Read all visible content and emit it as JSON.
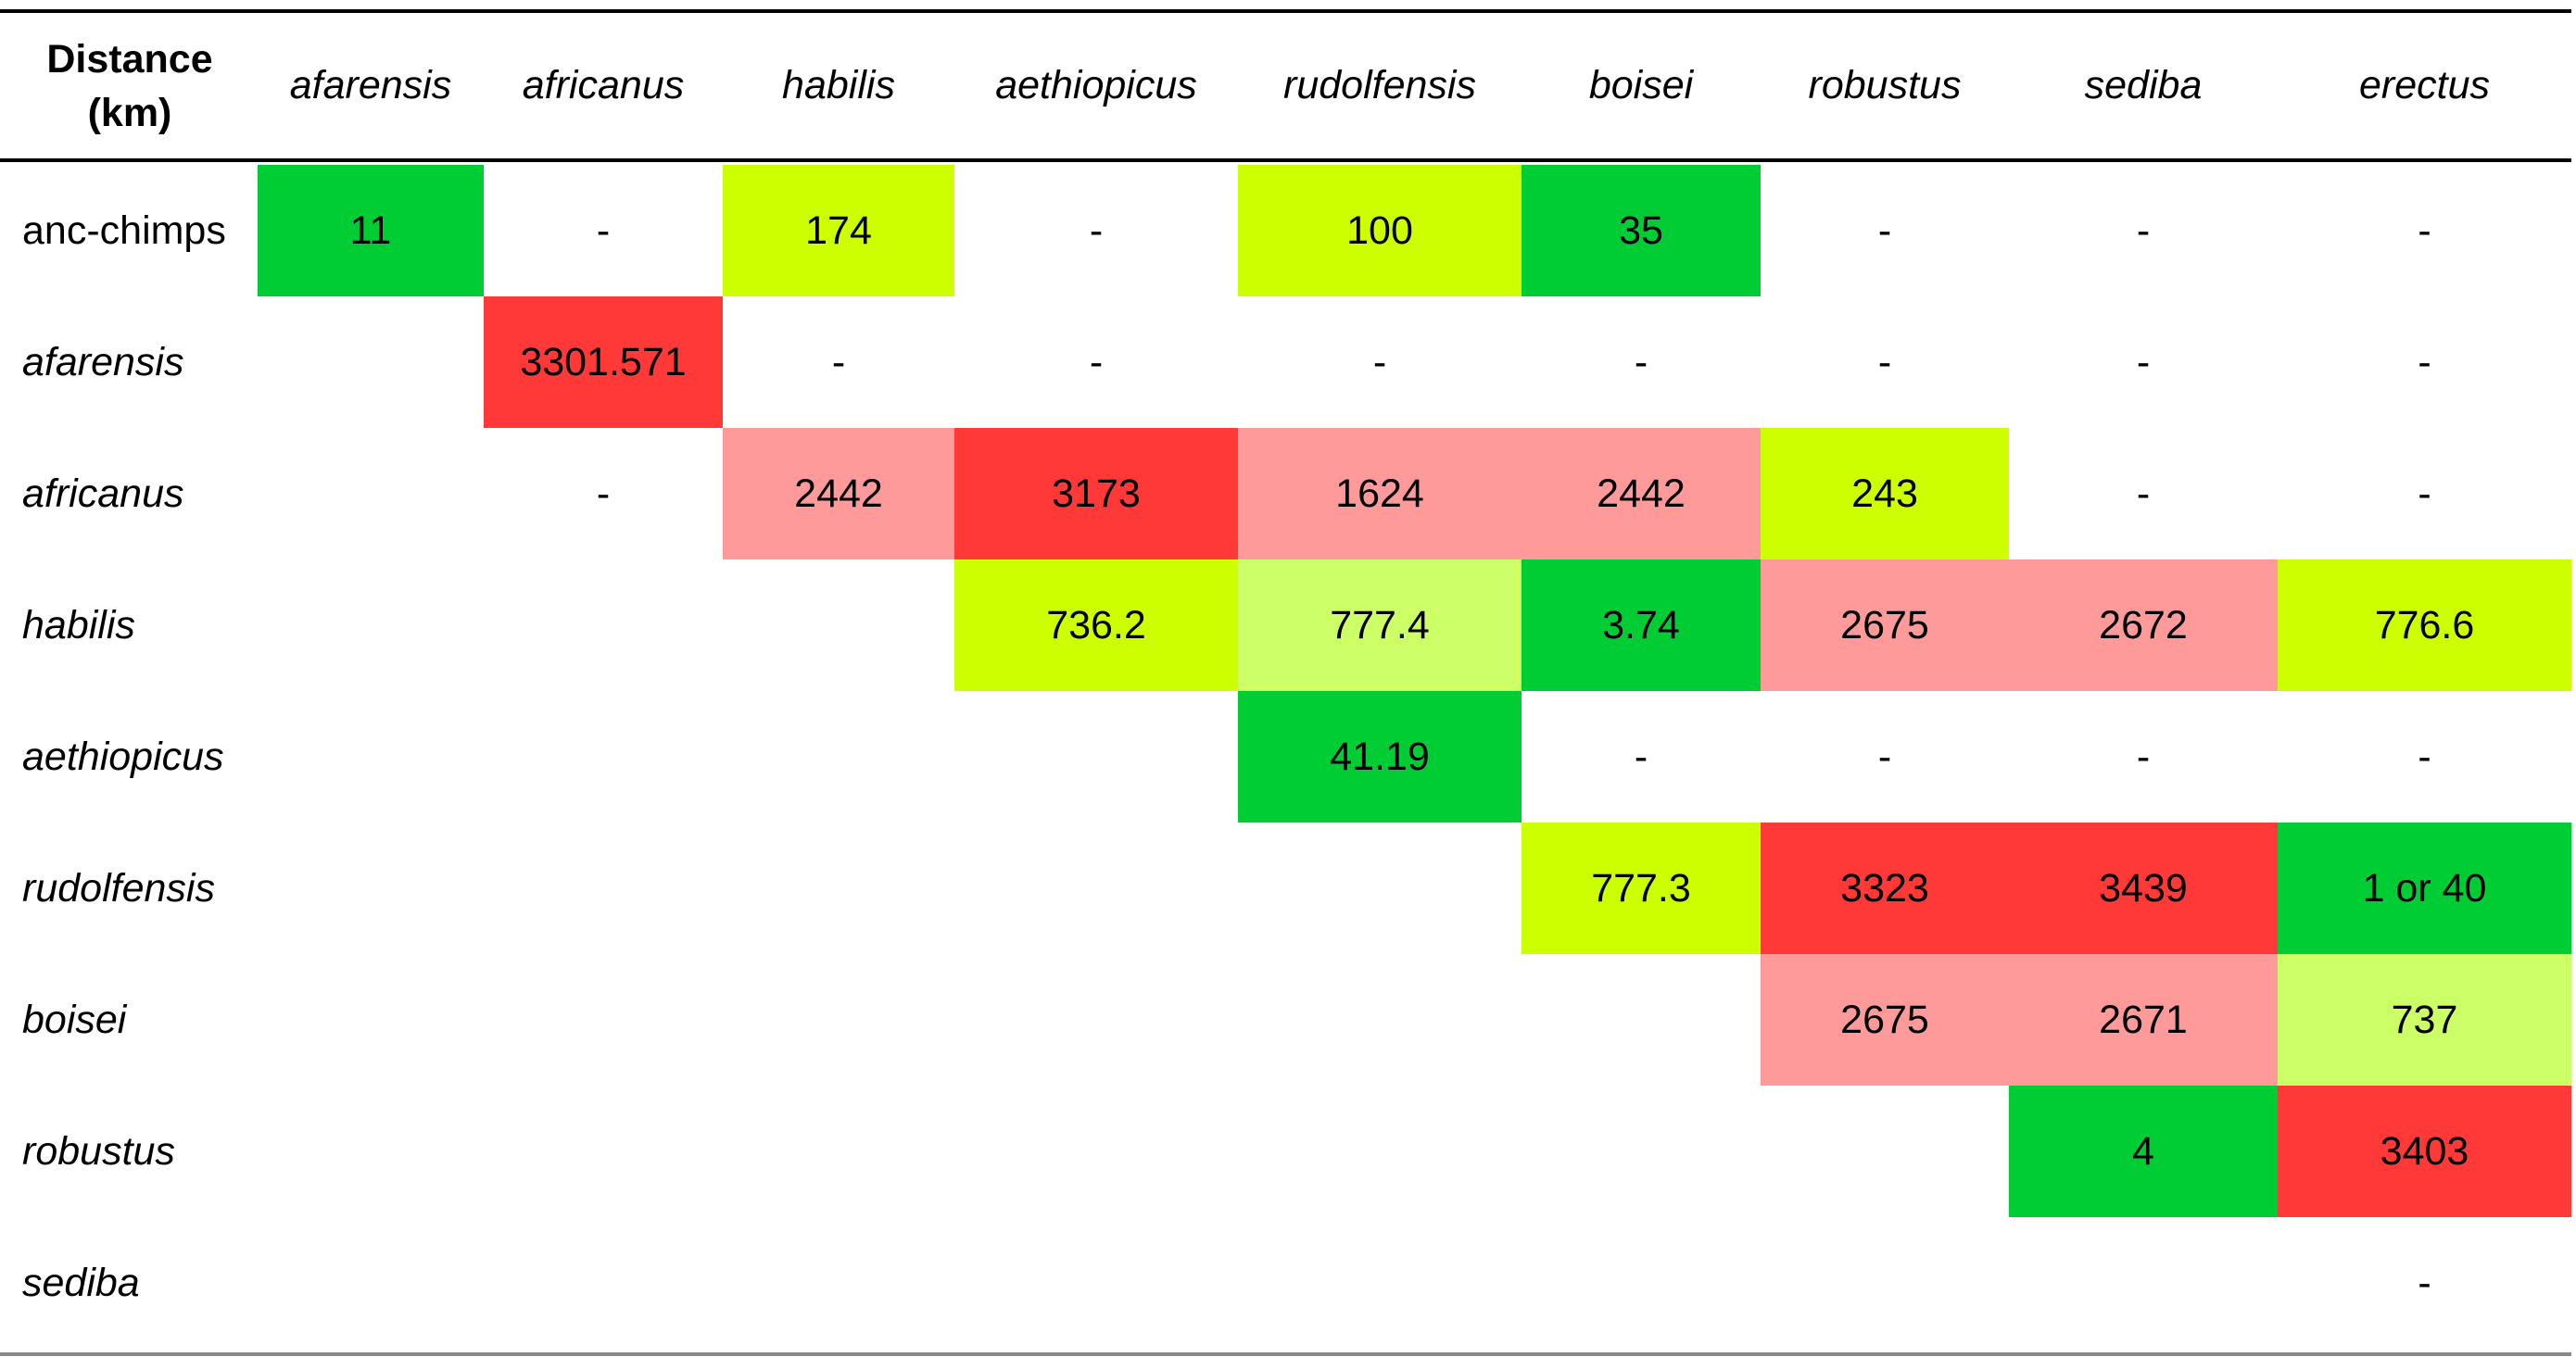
{
  "chart_data": {
    "type": "table",
    "corner_label": [
      "Distance",
      "(km)"
    ],
    "columns": [
      "afarensis",
      "africanus",
      "habilis",
      "aethiopicus",
      "rudolfensis",
      "boisei",
      "robustus",
      "sediba",
      "erectus"
    ],
    "rows": [
      {
        "label": "anc-chimps",
        "italic": false,
        "cells": [
          {
            "value": "11",
            "color": "#00cc33"
          },
          {
            "value": "-",
            "color": null
          },
          {
            "value": "174",
            "color": "#ccff00"
          },
          {
            "value": "-",
            "color": null
          },
          {
            "value": "100",
            "color": "#ccff00"
          },
          {
            "value": "35",
            "color": "#00cc33"
          },
          {
            "value": "-",
            "color": null
          },
          {
            "value": "-",
            "color": null
          },
          {
            "value": "-",
            "color": null
          }
        ]
      },
      {
        "label": "afarensis",
        "italic": true,
        "cells": [
          null,
          {
            "value": "3301.571",
            "color": "#ff3838"
          },
          {
            "value": "-",
            "color": null
          },
          {
            "value": "-",
            "color": null
          },
          {
            "value": "-",
            "color": null
          },
          {
            "value": "-",
            "color": null
          },
          {
            "value": "-",
            "color": null
          },
          {
            "value": "-",
            "color": null
          },
          {
            "value": "-",
            "color": null
          }
        ]
      },
      {
        "label": "africanus",
        "italic": true,
        "cells": [
          null,
          {
            "value": "-",
            "color": null
          },
          {
            "value": "2442",
            "color": "#ff9a9a"
          },
          {
            "value": "3173",
            "color": "#ff3838"
          },
          {
            "value": "1624",
            "color": "#ff9a9a"
          },
          {
            "value": "2442",
            "color": "#ff9a9a"
          },
          {
            "value": "243",
            "color": "#ccff00"
          },
          {
            "value": "-",
            "color": null
          },
          {
            "value": "-",
            "color": null
          }
        ]
      },
      {
        "label": "habilis",
        "italic": true,
        "cells": [
          null,
          null,
          null,
          {
            "value": "736.2",
            "color": "#ccff00"
          },
          {
            "value": "777.4",
            "color": "#ccff66"
          },
          {
            "value": "3.74",
            "color": "#00cc33"
          },
          {
            "value": "2675",
            "color": "#ff9a9a"
          },
          {
            "value": "2672",
            "color": "#ff9a9a"
          },
          {
            "value": "776.6",
            "color": "#ccff00"
          }
        ]
      },
      {
        "label": "aethiopicus",
        "italic": true,
        "cells": [
          null,
          null,
          null,
          null,
          {
            "value": "41.19",
            "color": "#00cc33"
          },
          {
            "value": "-",
            "color": null
          },
          {
            "value": "-",
            "color": null
          },
          {
            "value": "-",
            "color": null
          },
          {
            "value": "-",
            "color": null
          }
        ]
      },
      {
        "label": "rudolfensis",
        "italic": true,
        "cells": [
          null,
          null,
          null,
          null,
          null,
          {
            "value": "777.3",
            "color": "#ccff00"
          },
          {
            "value": "3323",
            "color": "#ff3838"
          },
          {
            "value": "3439",
            "color": "#ff3838"
          },
          {
            "value": "1 or 40",
            "color": "#00cc33"
          }
        ]
      },
      {
        "label": "boisei",
        "italic": true,
        "cells": [
          null,
          null,
          null,
          null,
          null,
          null,
          {
            "value": "2675",
            "color": "#ff9a9a"
          },
          {
            "value": "2671",
            "color": "#ff9a9a"
          },
          {
            "value": "737",
            "color": "#ccff66"
          }
        ]
      },
      {
        "label": "robustus",
        "italic": true,
        "cells": [
          null,
          null,
          null,
          null,
          null,
          null,
          null,
          {
            "value": "4",
            "color": "#00cc33"
          },
          {
            "value": "3403",
            "color": "#ff3838"
          }
        ]
      },
      {
        "label": "sediba",
        "italic": true,
        "cells": [
          null,
          null,
          null,
          null,
          null,
          null,
          null,
          null,
          {
            "value": "-",
            "color": null
          }
        ]
      }
    ]
  }
}
